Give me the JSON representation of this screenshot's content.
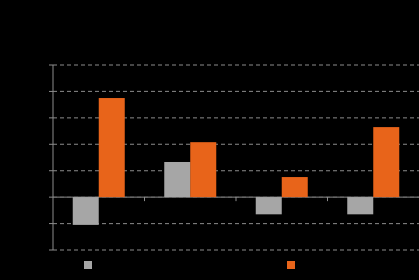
{
  "chart_data": {
    "type": "bar",
    "categories": [
      null,
      null,
      null,
      null
    ],
    "series": [
      {
        "color": "#a6a6a6",
        "values": [
          -1.05,
          1.33,
          -0.65,
          -0.65
        ]
      },
      {
        "color": "#e8641a",
        "values": [
          3.75,
          2.08,
          0.76,
          2.65
        ]
      }
    ],
    "ylim": [
      -2,
      5
    ],
    "yticks": [
      -2,
      -1,
      0,
      1,
      2,
      3,
      4,
      5
    ],
    "grid": true
  }
}
